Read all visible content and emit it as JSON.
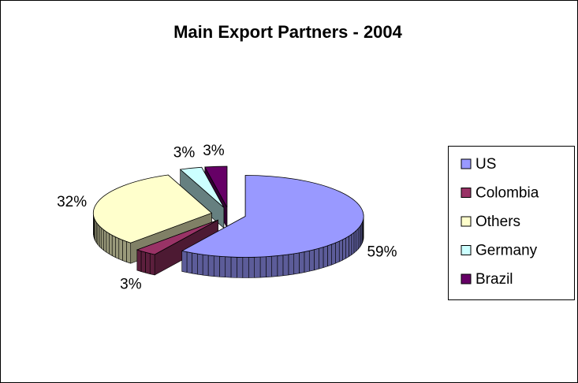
{
  "chart_data": {
    "type": "pie",
    "title": "Main Export Partners - 2004",
    "categories": [
      "US",
      "Colombia",
      "Others",
      "Germany",
      "Brazil"
    ],
    "values": [
      59,
      3,
      32,
      3,
      3
    ],
    "value_labels": [
      "59%",
      "3%",
      "32%",
      "3%",
      "3%"
    ],
    "colors": [
      "#9999ff",
      "#993366",
      "#ffffcc",
      "#ccffff",
      "#660066"
    ],
    "legend": "right"
  }
}
